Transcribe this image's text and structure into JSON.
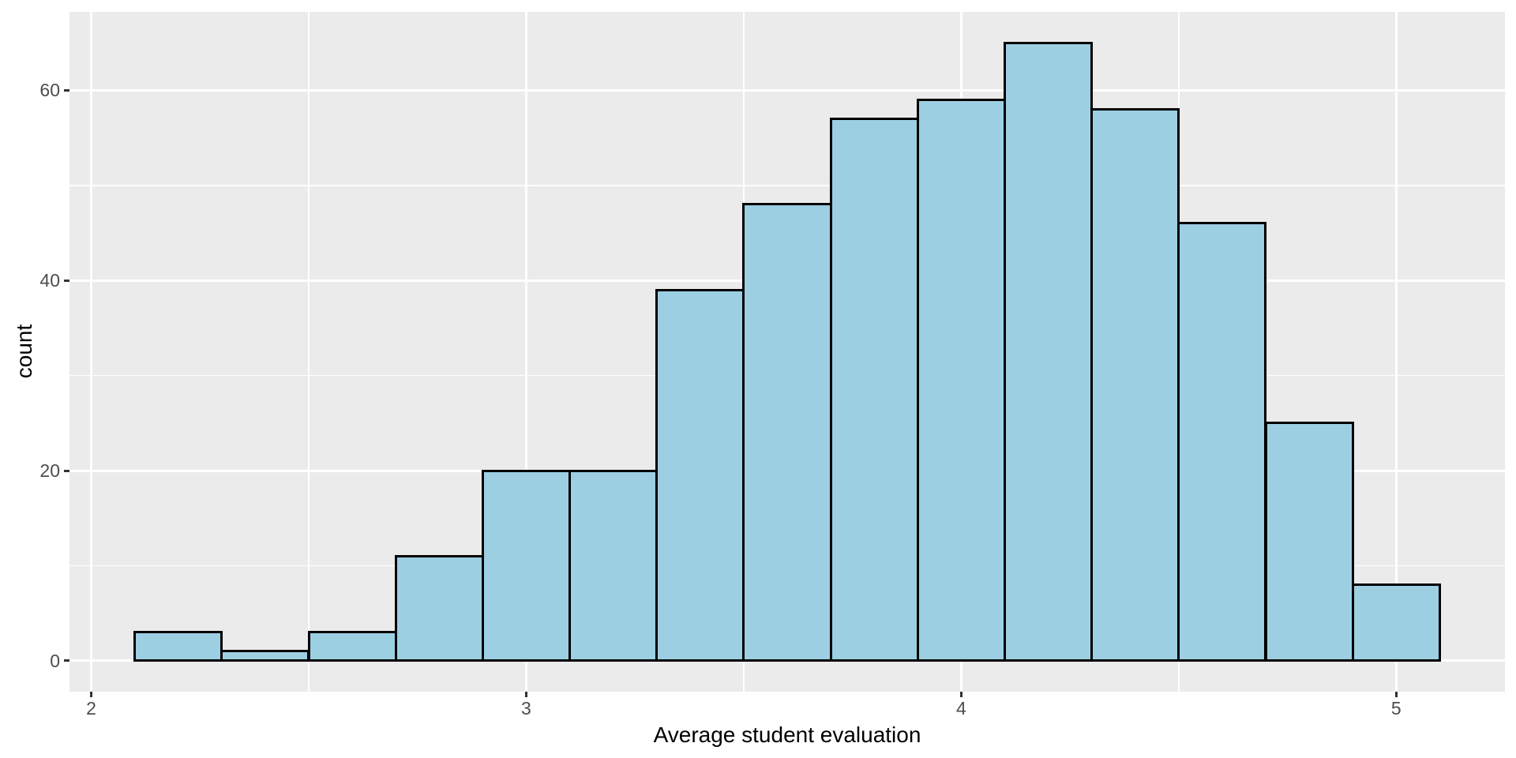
{
  "chart_data": {
    "type": "bar",
    "variant": "histogram",
    "title": "",
    "xlabel": "Average student evaluation",
    "ylabel": "count",
    "bin_width": 0.2,
    "bins": [
      {
        "x0": 2.1,
        "x1": 2.3,
        "count": 3
      },
      {
        "x0": 2.3,
        "x1": 2.5,
        "count": 1
      },
      {
        "x0": 2.5,
        "x1": 2.7,
        "count": 3
      },
      {
        "x0": 2.7,
        "x1": 2.9,
        "count": 11
      },
      {
        "x0": 2.9,
        "x1": 3.1,
        "count": 20
      },
      {
        "x0": 3.1,
        "x1": 3.3,
        "count": 20
      },
      {
        "x0": 3.3,
        "x1": 3.5,
        "count": 39
      },
      {
        "x0": 3.5,
        "x1": 3.7,
        "count": 48
      },
      {
        "x0": 3.7,
        "x1": 3.9,
        "count": 57
      },
      {
        "x0": 3.9,
        "x1": 4.1,
        "count": 59
      },
      {
        "x0": 4.1,
        "x1": 4.3,
        "count": 65
      },
      {
        "x0": 4.3,
        "x1": 4.5,
        "count": 58
      },
      {
        "x0": 4.5,
        "x1": 4.7,
        "count": 46
      },
      {
        "x0": 4.7,
        "x1": 4.9,
        "count": 25
      },
      {
        "x0": 4.9,
        "x1": 5.1,
        "count": 8
      }
    ],
    "x_ticks": [
      {
        "value": 2,
        "label": "2"
      },
      {
        "value": 3,
        "label": "3"
      },
      {
        "value": 4,
        "label": "4"
      },
      {
        "value": 5,
        "label": "5"
      }
    ],
    "y_ticks": [
      {
        "value": 0,
        "label": "0"
      },
      {
        "value": 20,
        "label": "20"
      },
      {
        "value": 40,
        "label": "40"
      },
      {
        "value": 60,
        "label": "60"
      }
    ],
    "x_minor_breaks": [
      2.5,
      3.5,
      4.5
    ],
    "y_minor_breaks": [
      10,
      30,
      50
    ],
    "x_domain": [
      1.95,
      5.25
    ],
    "y_domain": [
      -3.25,
      68.25
    ],
    "grid": "major+minor",
    "legend": "none",
    "colors": {
      "bar_fill": "#9DCFE3",
      "bar_stroke": "#000000",
      "panel_background": "#EBEBEB",
      "gridline": "#FFFFFF",
      "tick_mark": "#333333",
      "tick_label": "#4D4D4D",
      "axis_title": "#000000",
      "figure_background": "#FFFFFF"
    }
  }
}
